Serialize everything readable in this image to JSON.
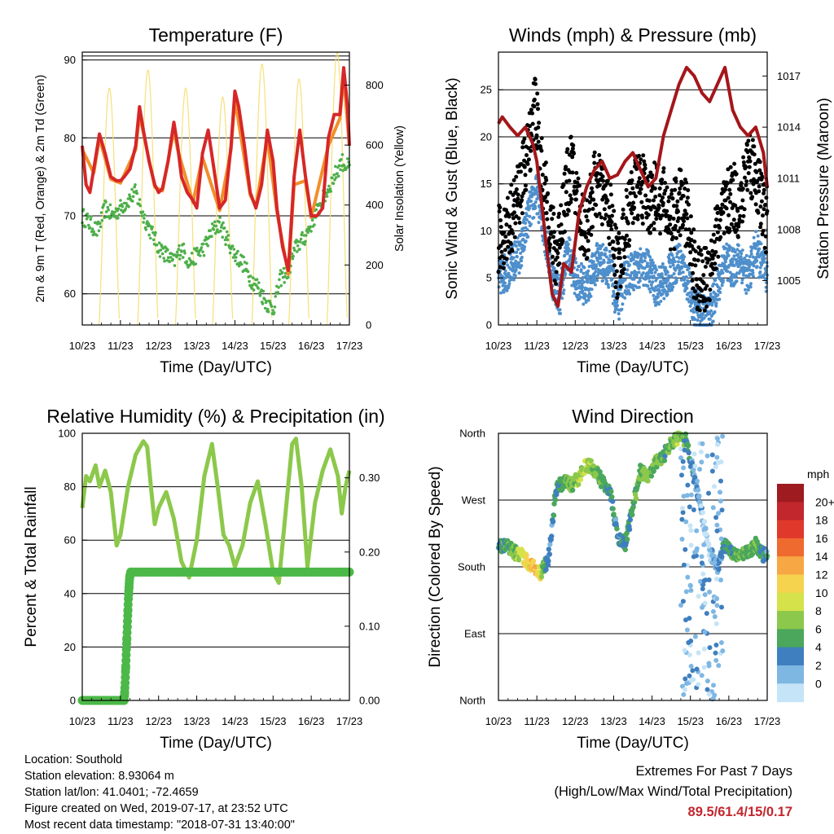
{
  "chart_data": [
    {
      "type": "line",
      "title": "Temperature (F)",
      "xlabel": "Time (Day/UTC)",
      "ylabel": "2m & 9m T (Red, Orange) & 2m Td (Green)",
      "ylabel_right": "Solar Insolation (Yellow)",
      "xticks": [
        "10/23",
        "11/23",
        "12/23",
        "13/23",
        "14/23",
        "15/23",
        "16/23",
        "17/23"
      ],
      "ylim": [
        56,
        91
      ],
      "yticks": [
        60,
        70,
        80,
        90
      ],
      "ylim_right": [
        0,
        910
      ],
      "yticks_right": [
        0,
        200,
        400,
        600,
        800
      ],
      "grid": "horizontal",
      "series": [
        {
          "name": "2m T",
          "color": "#d62728",
          "axis": "left",
          "x": [
            0.0,
            0.1,
            0.2,
            0.3,
            0.45,
            0.6,
            0.75,
            0.9,
            1.0,
            1.1,
            1.25,
            1.4,
            1.5,
            1.6,
            1.75,
            1.9,
            2.0,
            2.1,
            2.25,
            2.4,
            2.5,
            2.6,
            2.75,
            2.9,
            3.0,
            3.15,
            3.3,
            3.45,
            3.6,
            3.75,
            3.9,
            4.0,
            4.1,
            4.25,
            4.4,
            4.55,
            4.7,
            4.85,
            5.0,
            5.1,
            5.25,
            5.4,
            5.55,
            5.7,
            5.85,
            6.0,
            6.15,
            6.3,
            6.45,
            6.6,
            6.75,
            6.85,
            6.95,
            7.0
          ],
          "y": [
            79,
            74,
            73,
            76,
            80.5,
            78,
            75,
            74.5,
            74.5,
            75,
            76,
            79,
            84,
            81,
            77,
            74,
            73,
            73.5,
            77,
            82,
            79,
            75,
            73,
            72,
            71,
            78,
            81,
            76,
            71,
            72,
            79,
            86,
            84,
            79,
            73,
            71,
            74,
            81,
            77,
            71,
            66,
            63,
            75,
            81,
            75,
            70,
            70,
            71,
            80,
            83,
            83,
            89,
            84,
            79
          ]
        },
        {
          "name": "9m T",
          "color": "#f28e2b",
          "axis": "left",
          "x": [
            0.0,
            0.3,
            0.45,
            0.75,
            1.0,
            1.4,
            1.5,
            1.9,
            2.1,
            2.4,
            2.5,
            2.9,
            3.15,
            3.6,
            3.9,
            4.0,
            4.4,
            4.55,
            4.85,
            5.1,
            5.4,
            5.55,
            5.85,
            6.0,
            6.45,
            6.75,
            6.85,
            7.0
          ],
          "y": [
            78.5,
            75.5,
            80,
            74.7,
            74.2,
            78.5,
            83,
            73.7,
            73.2,
            81,
            78.5,
            71.7,
            77.5,
            70.7,
            78.5,
            85,
            72.7,
            71.2,
            80,
            70.5,
            62.5,
            74,
            74.5,
            69.8,
            79,
            82.5,
            88,
            79
          ]
        },
        {
          "name": "2m Td",
          "color": "#4daf4a",
          "axis": "left",
          "x": [
            0.0,
            0.2,
            0.4,
            0.6,
            0.8,
            1.0,
            1.2,
            1.4,
            1.6,
            1.8,
            2.0,
            2.2,
            2.4,
            2.6,
            2.8,
            3.0,
            3.2,
            3.4,
            3.6,
            3.8,
            4.0,
            4.2,
            4.4,
            4.6,
            4.8,
            5.0,
            5.2,
            5.4,
            5.6,
            5.8,
            6.0,
            6.2,
            6.4,
            6.6,
            6.8,
            7.0
          ],
          "y": [
            70,
            69,
            68,
            71,
            70,
            71,
            72,
            73,
            70,
            68,
            66,
            65,
            64,
            66,
            64,
            65,
            66,
            68,
            69,
            67,
            65,
            64,
            62,
            61,
            59,
            58,
            62,
            63,
            66,
            67,
            69,
            71,
            73,
            75,
            77,
            76
          ]
        },
        {
          "name": "Solar Insolation",
          "color": "#f6e07b",
          "axis": "right",
          "peaks_x": [
            0.71,
            1.72,
            2.71,
            3.68,
            4.71,
            5.68,
            6.68
          ],
          "peaks_y": [
            790,
            850,
            790,
            760,
            870,
            820,
            910
          ]
        }
      ]
    },
    {
      "type": "scatter",
      "title": "Winds (mph) & Pressure (mb)",
      "xlabel": "Time (Day/UTC)",
      "ylabel": "Sonic Wind & Gust (Blue, Black)",
      "ylabel_right": "Station Pressure (Maroon)",
      "xticks": [
        "10/23",
        "11/23",
        "12/23",
        "13/23",
        "14/23",
        "15/23",
        "16/23",
        "17/23"
      ],
      "ylim": [
        0,
        29
      ],
      "yticks": [
        0,
        5,
        10,
        15,
        20,
        25
      ],
      "ylim_right": [
        1002.4,
        1018.4
      ],
      "yticks_right": [
        1005,
        1008,
        1011,
        1014,
        1017
      ],
      "grid": "horizontal",
      "series": [
        {
          "name": "Sonic Wind",
          "color": "#4e8fcc",
          "axis": "left",
          "x": [
            0.0,
            0.3,
            0.6,
            0.8,
            1.0,
            1.2,
            1.4,
            1.6,
            1.8,
            2.0,
            2.3,
            2.6,
            2.9,
            3.1,
            3.3,
            3.6,
            3.9,
            4.1,
            4.4,
            4.7,
            4.9,
            5.1,
            5.3,
            5.5,
            5.7,
            5.9,
            6.1,
            6.3,
            6.5,
            6.7,
            6.9,
            7.0
          ],
          "y": [
            5,
            6,
            8,
            12,
            14,
            10,
            5,
            3,
            8,
            5,
            4,
            7,
            6,
            2,
            5,
            6,
            6,
            4,
            5,
            7,
            5,
            2,
            1,
            1,
            4,
            7,
            6,
            7,
            5,
            8,
            6,
            5
          ]
        },
        {
          "name": "Gust",
          "color": "#000000",
          "axis": "left",
          "x": [
            0.0,
            0.2,
            0.4,
            0.6,
            0.8,
            0.95,
            1.1,
            1.3,
            1.5,
            1.7,
            1.9,
            2.1,
            2.3,
            2.5,
            2.7,
            2.9,
            3.1,
            3.3,
            3.5,
            3.7,
            3.9,
            4.1,
            4.3,
            4.5,
            4.7,
            4.9,
            5.1,
            5.3,
            5.5,
            5.7,
            5.9,
            6.1,
            6.3,
            6.5,
            6.7,
            6.9,
            7.0
          ],
          "y": [
            9,
            10,
            12,
            15,
            19,
            24,
            17,
            12,
            7,
            13,
            17,
            12,
            10,
            15,
            14,
            12,
            6,
            10,
            14,
            15,
            13,
            14,
            13,
            11,
            13,
            12,
            6,
            4,
            6,
            10,
            12,
            14,
            12,
            18,
            16,
            12,
            11
          ]
        },
        {
          "name": "Station Pressure",
          "color": "#a4161a",
          "axis": "right",
          "x": [
            0.0,
            0.1,
            0.3,
            0.5,
            0.7,
            0.9,
            1.0,
            1.1,
            1.25,
            1.4,
            1.55,
            1.7,
            1.9,
            2.1,
            2.3,
            2.5,
            2.7,
            2.9,
            3.1,
            3.3,
            3.5,
            3.7,
            3.9,
            4.1,
            4.3,
            4.5,
            4.7,
            4.9,
            5.1,
            5.3,
            5.5,
            5.7,
            5.9,
            6.1,
            6.3,
            6.5,
            6.7,
            6.9,
            7.0
          ],
          "y": [
            1014.2,
            1014.6,
            1014.0,
            1013.5,
            1014.0,
            1013.0,
            1012.0,
            1010.0,
            1007.0,
            1004.2,
            1003.5,
            1006.0,
            1005.5,
            1009.0,
            1010.5,
            1011.5,
            1012.0,
            1011.0,
            1011.2,
            1012.0,
            1012.5,
            1011.5,
            1010.5,
            1011.0,
            1013.5,
            1015.0,
            1016.5,
            1017.5,
            1017.0,
            1016.0,
            1015.5,
            1016.5,
            1017.5,
            1015.0,
            1014.0,
            1013.5,
            1014.0,
            1012.5,
            1010.5
          ]
        }
      ]
    },
    {
      "type": "line",
      "title": "Relative Humidity (%) & Precipitation (in)",
      "xlabel": "Time (Day/UTC)",
      "ylabel": "Percent & Total Rainfall",
      "xticks": [
        "10/23",
        "11/23",
        "12/23",
        "13/23",
        "14/23",
        "15/23",
        "16/23",
        "17/23"
      ],
      "ylim": [
        0,
        100
      ],
      "yticks": [
        0,
        20,
        40,
        60,
        80,
        100
      ],
      "ylim_right": [
        0,
        0.36
      ],
      "yticks_right": [
        "0.00",
        "0.10",
        "0.20",
        "0.30"
      ],
      "grid": "horizontal",
      "series": [
        {
          "name": "Relative Humidity",
          "color": "#8cc84b",
          "axis": "left",
          "x": [
            0.0,
            0.1,
            0.2,
            0.35,
            0.45,
            0.6,
            0.75,
            0.9,
            1.0,
            1.2,
            1.4,
            1.6,
            1.7,
            1.8,
            1.9,
            2.0,
            2.2,
            2.4,
            2.6,
            2.8,
            3.0,
            3.2,
            3.4,
            3.55,
            3.7,
            3.85,
            4.0,
            4.2,
            4.4,
            4.6,
            4.8,
            5.0,
            5.15,
            5.3,
            5.5,
            5.6,
            5.75,
            5.9,
            6.1,
            6.3,
            6.5,
            6.7,
            6.8,
            6.9,
            7.0
          ],
          "y": [
            72,
            84,
            82,
            88,
            80,
            86,
            78,
            58,
            62,
            80,
            92,
            97,
            95,
            80,
            66,
            72,
            78,
            68,
            52,
            46,
            60,
            84,
            96,
            80,
            62,
            58,
            50,
            58,
            74,
            82,
            66,
            48,
            44,
            66,
            96,
            98,
            80,
            50,
            74,
            86,
            94,
            84,
            70,
            80,
            86
          ]
        },
        {
          "name": "Total Rainfall",
          "color": "#4cb848",
          "axis": "right",
          "x": [
            0.0,
            1.1,
            1.12,
            1.15,
            1.18,
            1.21,
            1.24,
            1.27,
            7.0
          ],
          "y": [
            0.0,
            0.0,
            0.02,
            0.06,
            0.1,
            0.14,
            0.165,
            0.173,
            0.173
          ]
        }
      ]
    },
    {
      "type": "scatter",
      "title": "Wind Direction",
      "xlabel": "Time (Day/UTC)",
      "ylabel": "Direction (Colored By Speed)",
      "xticks": [
        "10/23",
        "11/23",
        "12/23",
        "13/23",
        "14/23",
        "15/23",
        "16/23",
        "17/23"
      ],
      "yticks": [
        "North",
        "East",
        "South",
        "West",
        "North"
      ],
      "ylim": [
        0,
        360
      ],
      "grid": "horizontal",
      "colorbar": {
        "title": "mph",
        "labels": [
          "20+",
          "18",
          "16",
          "14",
          "12",
          "10",
          "8",
          "6",
          "4",
          "2",
          "0"
        ],
        "colors": [
          "#9e1b20",
          "#c1272d",
          "#e0392b",
          "#ef6a2f",
          "#f7a743",
          "#f5d34f",
          "#d6e24a",
          "#8cc84b",
          "#4aa75c",
          "#3f7fbf",
          "#7fb7e3",
          "#c6e4f7"
        ]
      },
      "series": [
        {
          "name": "Wind Direction",
          "x": [
            0.0,
            0.2,
            0.4,
            0.6,
            0.8,
            0.95,
            1.1,
            1.3,
            1.5,
            1.7,
            1.9,
            2.1,
            2.3,
            2.5,
            2.7,
            2.9,
            3.1,
            3.3,
            3.5,
            3.7,
            3.9,
            4.1,
            4.3,
            4.5,
            4.7,
            4.9,
            5.1,
            5.3,
            5.5,
            5.7,
            5.9,
            6.1,
            6.3,
            6.5,
            6.7,
            6.9,
            7.0
          ],
          "y": [
            205,
            210,
            200,
            195,
            185,
            180,
            170,
            190,
            285,
            295,
            290,
            300,
            320,
            310,
            295,
            285,
            220,
            210,
            260,
            310,
            300,
            320,
            330,
            345,
            355,
            350,
            300,
            250,
            200,
            180,
            210,
            200,
            195,
            200,
            210,
            195,
            200
          ],
          "speed": [
            5,
            6,
            7,
            9,
            12,
            14,
            10,
            3,
            5,
            6,
            7,
            8,
            9,
            7,
            6,
            5,
            4,
            5,
            6,
            7,
            8,
            7,
            6,
            7,
            8,
            6,
            3,
            2,
            1,
            3,
            5,
            6,
            7,
            6,
            7,
            5,
            4
          ]
        }
      ]
    }
  ],
  "info": {
    "location": "Location: Southold",
    "elevation": "Station elevation: 8.93064 m",
    "latlon": "Station lat/lon: 41.0401; -72.4659",
    "created": "Figure created on Wed, 2019-07-17, at 23:52 UTC",
    "timestamp": "Most recent data timestamp: \"2018-07-31 13:40:00\""
  },
  "extremes": {
    "title": "Extremes For Past 7 Days",
    "subtitle": "(High/Low/Max Wind/Total Precipitation)",
    "values": "89.5/61.4/15/0.17"
  }
}
